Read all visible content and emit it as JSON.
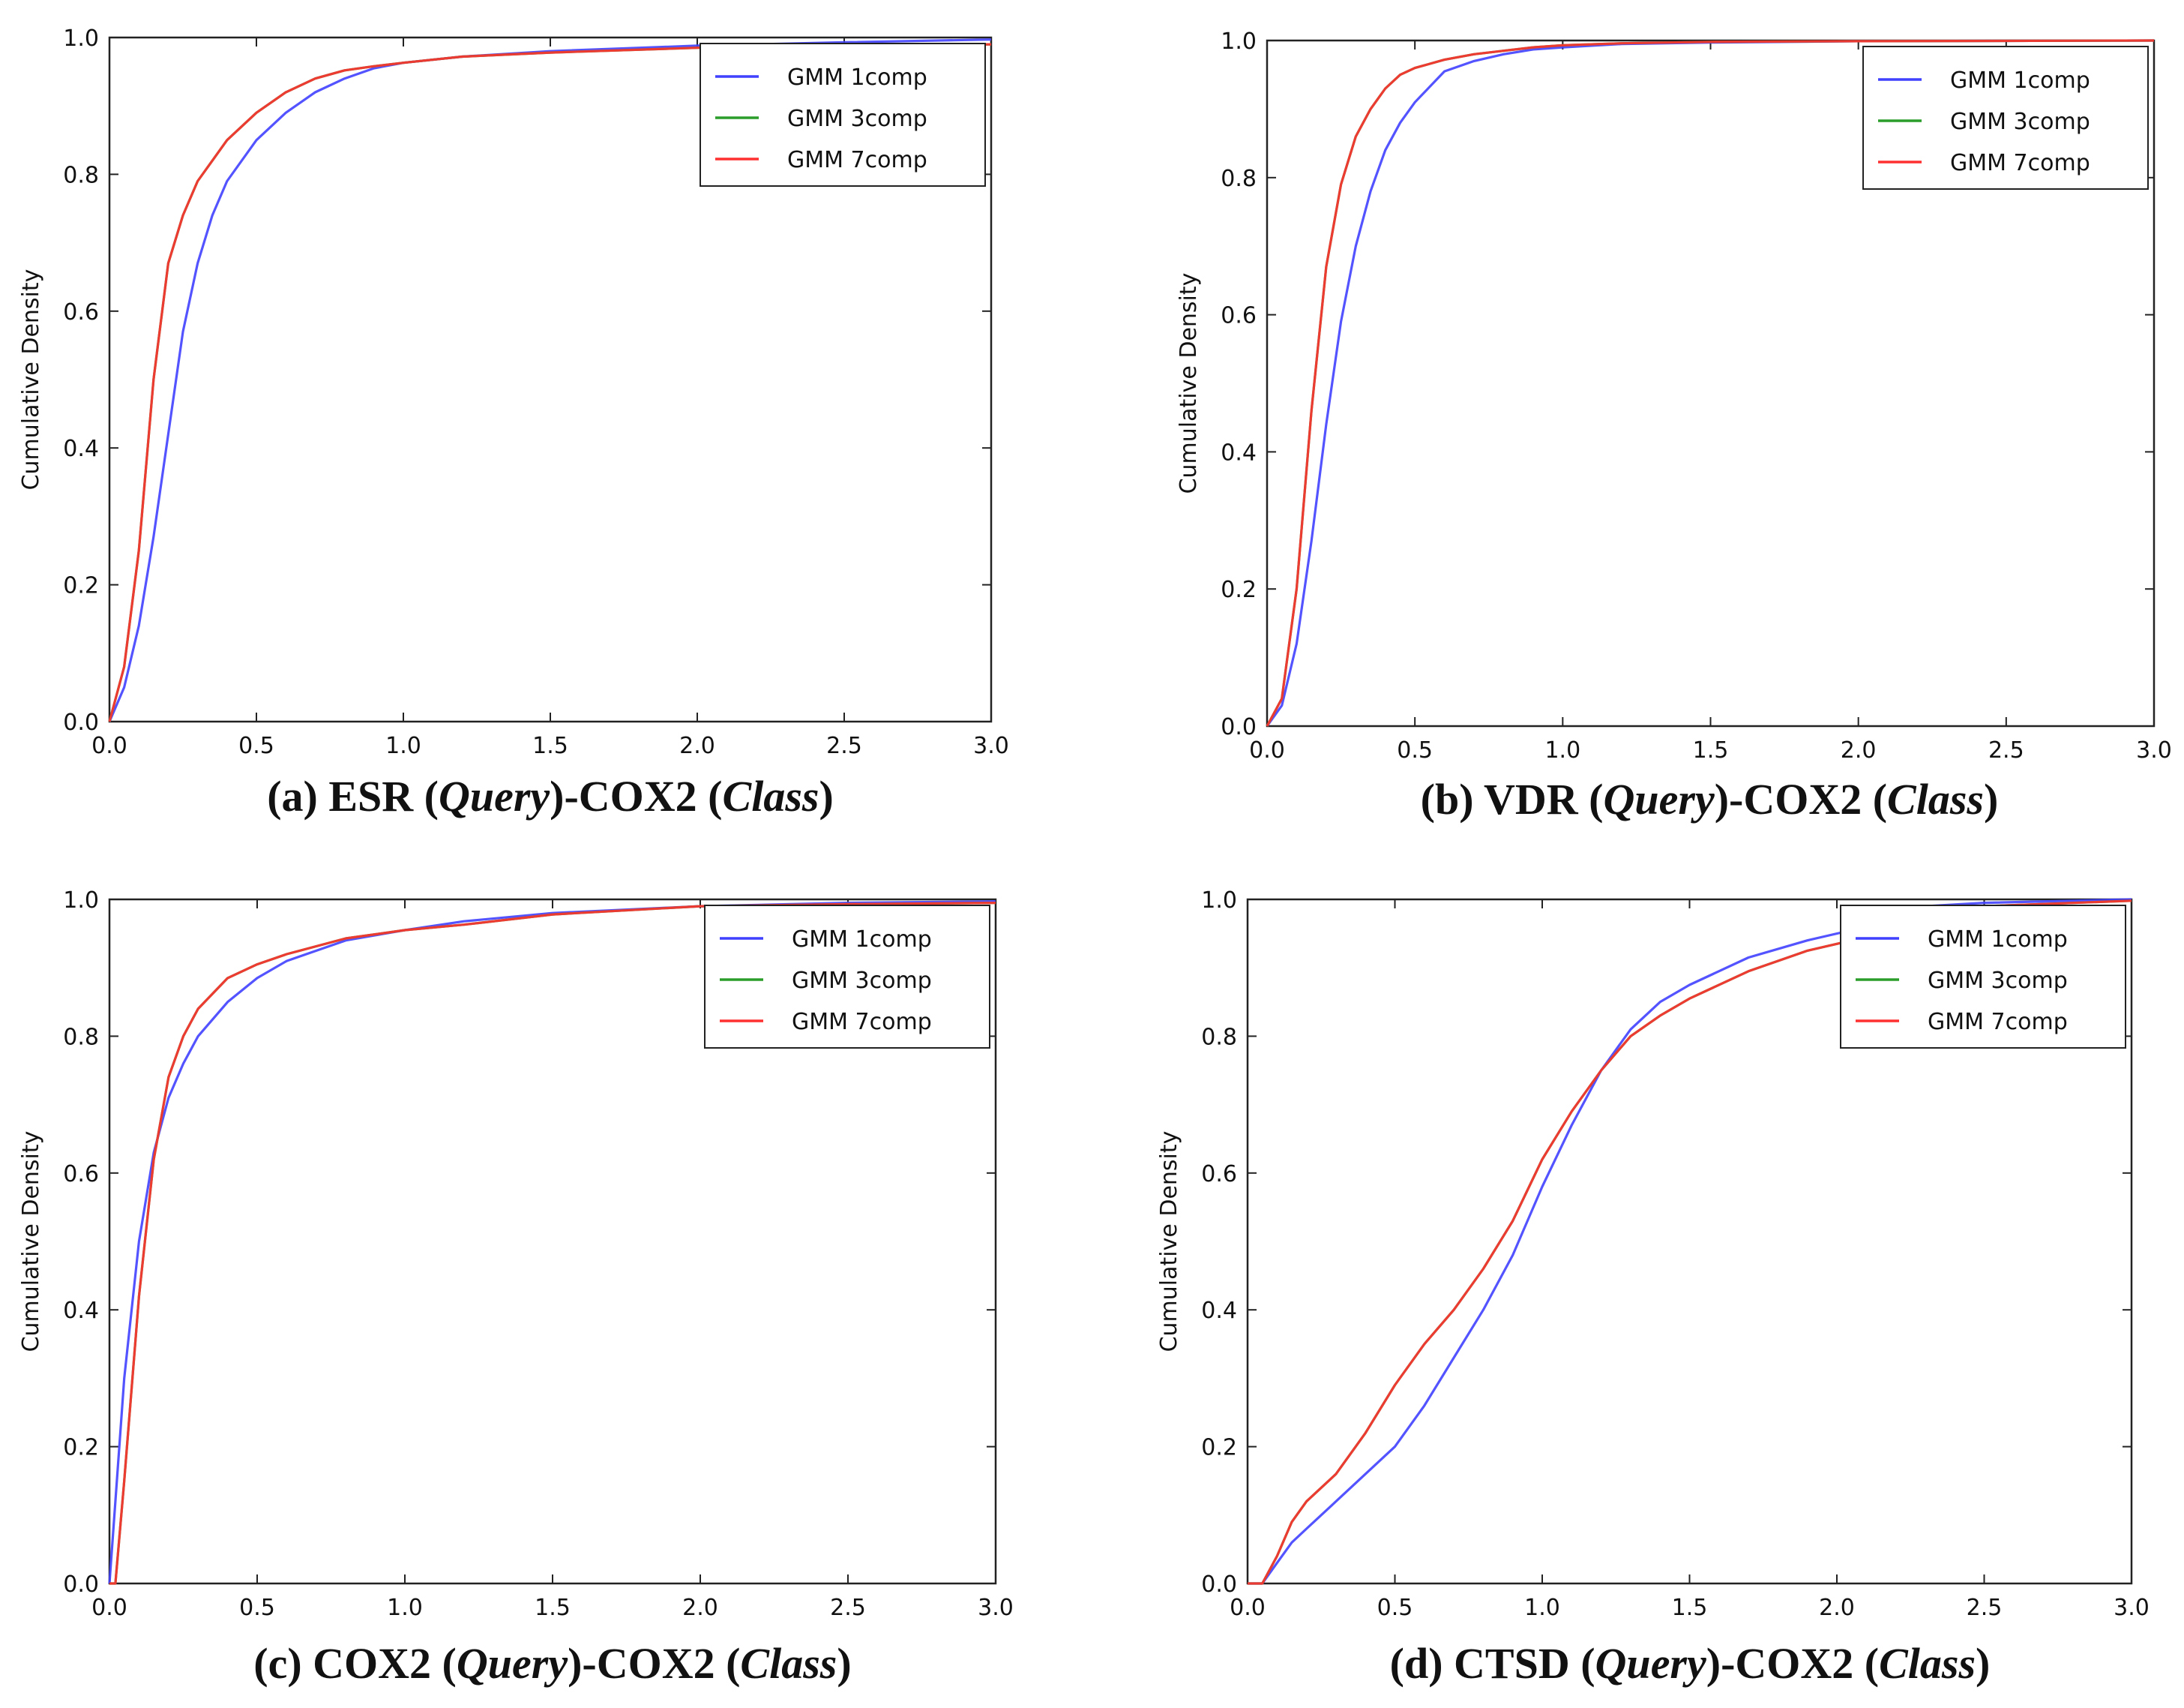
{
  "colors": {
    "gmm_1comp": "#4040ff",
    "gmm_3comp": "#2a9d2a",
    "gmm_7comp": "#ff3030",
    "axes": "#222222",
    "text": "#111111"
  },
  "chart_data": [
    {
      "type": "line",
      "caption": {
        "prefix": "(a) ESR (",
        "query": "Query",
        "middle": ")-COX2 (",
        "class": "Class",
        "suffix": ")"
      },
      "xlabel": "",
      "ylabel": "Cumulative Density",
      "xlim": [
        0.0,
        3.0
      ],
      "ylim": [
        0.0,
        1.0
      ],
      "xticks": [
        "0.0",
        "0.5",
        "1.0",
        "1.5",
        "2.0",
        "2.5",
        "3.0"
      ],
      "yticks": [
        "0.0",
        "0.2",
        "0.4",
        "0.6",
        "0.8",
        "1.0"
      ],
      "legend_position": "top-right",
      "legend": [
        "GMM 1comp",
        "GMM 3comp",
        "GMM 7comp"
      ],
      "series": [
        {
          "name": "GMM 1comp",
          "color": "#4040ff",
          "x": [
            0,
            0.05,
            0.1,
            0.15,
            0.2,
            0.25,
            0.3,
            0.35,
            0.4,
            0.5,
            0.6,
            0.7,
            0.8,
            0.9,
            1.0,
            1.2,
            1.5,
            2.0,
            2.5,
            3.0
          ],
          "y": [
            0,
            0.05,
            0.14,
            0.27,
            0.42,
            0.57,
            0.67,
            0.74,
            0.79,
            0.85,
            0.89,
            0.92,
            0.94,
            0.955,
            0.963,
            0.972,
            0.98,
            0.988,
            0.993,
            0.997
          ]
        },
        {
          "name": "GMM 3comp",
          "color": "#2a9d2a",
          "x": [
            0,
            0.05,
            0.1,
            0.15,
            0.2,
            0.25,
            0.3,
            0.35,
            0.4,
            0.5,
            0.6,
            0.7,
            0.8,
            0.9,
            1.0,
            1.2,
            1.5,
            2.0,
            2.5,
            3.0
          ],
          "y": [
            0,
            0.08,
            0.25,
            0.5,
            0.67,
            0.74,
            0.79,
            0.82,
            0.85,
            0.89,
            0.92,
            0.94,
            0.952,
            0.958,
            0.963,
            0.972,
            0.978,
            0.985,
            0.988,
            0.99
          ]
        },
        {
          "name": "GMM 7comp",
          "color": "#ff3030",
          "x": [
            0,
            0.05,
            0.1,
            0.15,
            0.2,
            0.25,
            0.3,
            0.35,
            0.4,
            0.5,
            0.6,
            0.7,
            0.8,
            0.9,
            1.0,
            1.2,
            1.5,
            2.0,
            2.5,
            3.0
          ],
          "y": [
            0,
            0.08,
            0.25,
            0.5,
            0.67,
            0.74,
            0.79,
            0.82,
            0.85,
            0.89,
            0.92,
            0.94,
            0.952,
            0.958,
            0.963,
            0.972,
            0.978,
            0.985,
            0.988,
            0.99
          ]
        }
      ]
    },
    {
      "type": "line",
      "caption": {
        "prefix": "(b) VDR (",
        "query": "Query",
        "middle": ")-COX2 (",
        "class": "Class",
        "suffix": ")"
      },
      "xlabel": "",
      "ylabel": "Cumulative Density",
      "xlim": [
        0.0,
        3.0
      ],
      "ylim": [
        0.0,
        1.0
      ],
      "xticks": [
        "0.0",
        "0.5",
        "1.0",
        "1.5",
        "2.0",
        "2.5",
        "3.0"
      ],
      "yticks": [
        "0.0",
        "0.2",
        "0.4",
        "0.6",
        "0.8",
        "1.0"
      ],
      "legend_position": "top-right",
      "legend": [
        "GMM 1comp",
        "GMM 3comp",
        "GMM 7comp"
      ],
      "series": [
        {
          "name": "GMM 1comp",
          "color": "#4040ff",
          "x": [
            0,
            0.05,
            0.1,
            0.15,
            0.2,
            0.25,
            0.3,
            0.35,
            0.4,
            0.45,
            0.5,
            0.6,
            0.7,
            0.8,
            0.9,
            1.0,
            1.2,
            1.5,
            2.0,
            3.0
          ],
          "y": [
            0,
            0.03,
            0.12,
            0.27,
            0.44,
            0.59,
            0.7,
            0.78,
            0.84,
            0.88,
            0.91,
            0.955,
            0.97,
            0.98,
            0.987,
            0.99,
            0.995,
            0.997,
            0.999,
            1.0
          ]
        },
        {
          "name": "GMM 3comp",
          "color": "#2a9d2a",
          "x": [
            0,
            0.05,
            0.1,
            0.15,
            0.2,
            0.25,
            0.3,
            0.35,
            0.4,
            0.45,
            0.5,
            0.6,
            0.7,
            0.8,
            0.9,
            1.0,
            1.2,
            1.5,
            2.0,
            3.0
          ],
          "y": [
            0,
            0.04,
            0.2,
            0.46,
            0.67,
            0.79,
            0.86,
            0.9,
            0.93,
            0.95,
            0.96,
            0.972,
            0.98,
            0.985,
            0.99,
            0.993,
            0.996,
            0.998,
            0.999,
            1.0
          ]
        },
        {
          "name": "GMM 7comp",
          "color": "#ff3030",
          "x": [
            0,
            0.05,
            0.1,
            0.15,
            0.2,
            0.25,
            0.3,
            0.35,
            0.4,
            0.45,
            0.5,
            0.6,
            0.7,
            0.8,
            0.9,
            1.0,
            1.2,
            1.5,
            2.0,
            3.0
          ],
          "y": [
            0,
            0.04,
            0.2,
            0.46,
            0.67,
            0.79,
            0.86,
            0.9,
            0.93,
            0.95,
            0.96,
            0.972,
            0.98,
            0.985,
            0.99,
            0.993,
            0.996,
            0.998,
            0.999,
            1.0
          ]
        }
      ]
    },
    {
      "type": "line",
      "caption": {
        "prefix": "(c) COX2 (",
        "query": "Query",
        "middle": ")-COX2 (",
        "class": "Class",
        "suffix": ")"
      },
      "xlabel": "",
      "ylabel": "Cumulative Density",
      "xlim": [
        0.0,
        3.0
      ],
      "ylim": [
        0.0,
        1.0
      ],
      "xticks": [
        "0.0",
        "0.5",
        "1.0",
        "1.5",
        "2.0",
        "2.5",
        "3.0"
      ],
      "yticks": [
        "0.0",
        "0.2",
        "0.4",
        "0.6",
        "0.8",
        "1.0"
      ],
      "legend_position": "top-right",
      "legend": [
        "GMM 1comp",
        "GMM 3comp",
        "GMM 7comp"
      ],
      "series": [
        {
          "name": "GMM 1comp",
          "color": "#4040ff",
          "x": [
            0,
            0.02,
            0.05,
            0.1,
            0.15,
            0.2,
            0.25,
            0.3,
            0.4,
            0.5,
            0.6,
            0.8,
            1.0,
            1.2,
            1.5,
            2.0,
            2.5,
            3.0
          ],
          "y": [
            0,
            0.12,
            0.3,
            0.5,
            0.63,
            0.71,
            0.76,
            0.8,
            0.85,
            0.885,
            0.91,
            0.94,
            0.955,
            0.968,
            0.98,
            0.99,
            0.995,
            0.997
          ]
        },
        {
          "name": "GMM 3comp",
          "color": "#2a9d2a",
          "x": [
            0,
            0.02,
            0.05,
            0.1,
            0.15,
            0.2,
            0.25,
            0.3,
            0.4,
            0.5,
            0.6,
            0.8,
            1.0,
            1.2,
            1.5,
            2.0,
            2.5,
            3.0
          ],
          "y": [
            0,
            0.0,
            0.15,
            0.42,
            0.62,
            0.74,
            0.8,
            0.84,
            0.885,
            0.905,
            0.92,
            0.943,
            0.955,
            0.963,
            0.978,
            0.99,
            0.993,
            0.995
          ]
        },
        {
          "name": "GMM 7comp",
          "color": "#ff3030",
          "x": [
            0,
            0.02,
            0.05,
            0.1,
            0.15,
            0.2,
            0.25,
            0.3,
            0.4,
            0.5,
            0.6,
            0.8,
            1.0,
            1.2,
            1.5,
            2.0,
            2.5,
            3.0
          ],
          "y": [
            0,
            0.0,
            0.15,
            0.42,
            0.62,
            0.74,
            0.8,
            0.84,
            0.885,
            0.905,
            0.92,
            0.943,
            0.955,
            0.963,
            0.978,
            0.99,
            0.993,
            0.995
          ]
        }
      ]
    },
    {
      "type": "line",
      "caption": {
        "prefix": "(d) CTSD (",
        "query": "Query",
        "middle": ")-COX2 (",
        "class": "Class",
        "suffix": ")"
      },
      "xlabel": "",
      "ylabel": "Cumulative Density",
      "xlim": [
        0.0,
        3.0
      ],
      "ylim": [
        0.0,
        1.0
      ],
      "xticks": [
        "0.0",
        "0.5",
        "1.0",
        "1.5",
        "2.0",
        "2.5",
        "3.0"
      ],
      "yticks": [
        "0.0",
        "0.2",
        "0.4",
        "0.6",
        "0.8",
        "1.0"
      ],
      "legend_position": "top-right",
      "legend": [
        "GMM 1comp",
        "GMM 3comp",
        "GMM 7comp"
      ],
      "series": [
        {
          "name": "GMM 1comp",
          "color": "#4040ff",
          "x": [
            0,
            0.05,
            0.1,
            0.15,
            0.2,
            0.3,
            0.4,
            0.5,
            0.6,
            0.7,
            0.8,
            0.9,
            1.0,
            1.1,
            1.2,
            1.3,
            1.4,
            1.5,
            1.7,
            1.9,
            2.1,
            2.3,
            2.5,
            3.0
          ],
          "y": [
            0,
            0.0,
            0.03,
            0.06,
            0.08,
            0.12,
            0.16,
            0.2,
            0.26,
            0.33,
            0.4,
            0.48,
            0.58,
            0.67,
            0.75,
            0.81,
            0.85,
            0.875,
            0.915,
            0.94,
            0.96,
            0.99,
            0.995,
            1.0
          ]
        },
        {
          "name": "GMM 3comp",
          "color": "#2a9d2a",
          "x": [
            0,
            0.05,
            0.1,
            0.15,
            0.2,
            0.3,
            0.4,
            0.5,
            0.6,
            0.7,
            0.8,
            0.9,
            1.0,
            1.1,
            1.2,
            1.3,
            1.4,
            1.5,
            1.7,
            1.9,
            2.1,
            2.3,
            2.5,
            3.0
          ],
          "y": [
            0,
            0.0,
            0.04,
            0.09,
            0.12,
            0.16,
            0.22,
            0.29,
            0.35,
            0.4,
            0.46,
            0.53,
            0.62,
            0.69,
            0.75,
            0.8,
            0.83,
            0.855,
            0.895,
            0.925,
            0.945,
            0.975,
            0.99,
            0.998
          ]
        },
        {
          "name": "GMM 7comp",
          "color": "#ff3030",
          "x": [
            0,
            0.05,
            0.1,
            0.15,
            0.2,
            0.3,
            0.4,
            0.5,
            0.6,
            0.7,
            0.8,
            0.9,
            1.0,
            1.1,
            1.2,
            1.3,
            1.4,
            1.5,
            1.7,
            1.9,
            2.1,
            2.3,
            2.5,
            3.0
          ],
          "y": [
            0,
            0.0,
            0.04,
            0.09,
            0.12,
            0.16,
            0.22,
            0.29,
            0.35,
            0.4,
            0.46,
            0.53,
            0.62,
            0.69,
            0.75,
            0.8,
            0.83,
            0.855,
            0.895,
            0.925,
            0.945,
            0.975,
            0.99,
            0.998
          ]
        }
      ]
    }
  ]
}
